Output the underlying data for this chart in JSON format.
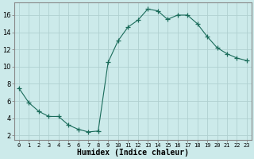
{
  "x": [
    0,
    1,
    2,
    3,
    4,
    5,
    6,
    7,
    8,
    9,
    10,
    11,
    12,
    13,
    14,
    15,
    16,
    17,
    18,
    19,
    20,
    21,
    22,
    23
  ],
  "y": [
    7.5,
    5.8,
    4.8,
    4.2,
    4.2,
    3.2,
    2.7,
    2.4,
    2.5,
    10.5,
    13.0,
    14.6,
    15.4,
    16.7,
    16.5,
    15.5,
    16.0,
    16.0,
    15.0,
    13.5,
    12.2,
    11.5,
    11.0,
    10.7
  ],
  "line_color": "#1a6b5a",
  "marker": "+",
  "marker_size": 4,
  "bg_color": "#cceaea",
  "grid_color": "#b0d0d0",
  "axis_color": "#888888",
  "xlabel": "Humidex (Indice chaleur)",
  "xlabel_fontsize": 7,
  "xtick_labels": [
    "0",
    "1",
    "2",
    "3",
    "4",
    "5",
    "6",
    "7",
    "8",
    "9",
    "10",
    "11",
    "12",
    "13",
    "14",
    "15",
    "16",
    "17",
    "18",
    "19",
    "20",
    "21",
    "22",
    "23"
  ],
  "ytick_labels": [
    2,
    4,
    6,
    8,
    10,
    12,
    14,
    16
  ],
  "ylim": [
    1.5,
    17.5
  ],
  "xlim": [
    -0.5,
    23.5
  ]
}
